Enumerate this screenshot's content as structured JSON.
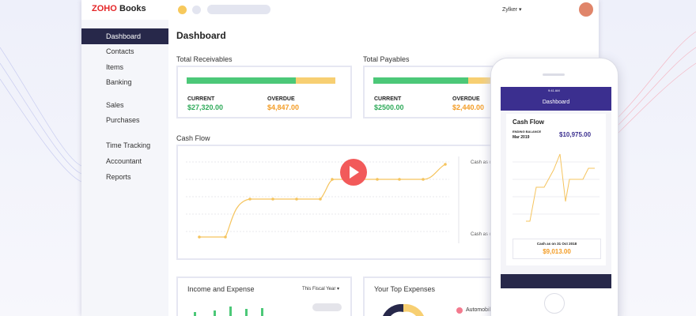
{
  "logo": {
    "brand": "ZOHO",
    "product": "Books"
  },
  "top_bar": {
    "user": "Zylker ▾"
  },
  "sidebar": {
    "items": [
      "Dashboard",
      "Contacts",
      "Items",
      "Banking",
      "Sales",
      "Purchases",
      "Time Tracking",
      "Accountant",
      "Reports"
    ]
  },
  "main": {
    "title": "Dashboard"
  },
  "receivables": {
    "title": "Total Receivables",
    "current_label": "CURRENT",
    "current_value": "$27,320.00",
    "overdue_label": "OVERDUE",
    "overdue_value": "$4,847.00"
  },
  "payables": {
    "title": "Total Payables",
    "current_label": "CURRENT",
    "current_value": "$2500.00",
    "overdue_label": "OVERDUE",
    "overdue_value": "$2,440.00"
  },
  "cash_flow": {
    "title": "Cash Flow",
    "side_labels": [
      "Cash as o",
      "Cash as o"
    ]
  },
  "income_expense": {
    "title": "Income and Expense",
    "period": "This Fiscal Year ▾"
  },
  "top_expenses": {
    "title": "Your Top Expenses",
    "legend": "Automobile"
  },
  "phone": {
    "time": "9:41 AM",
    "header": "Dashboard",
    "card_title": "Cash Flow",
    "ending_balance_label": "ENDING BALANCE",
    "ending_balance_month": "Mar 2019",
    "ending_balance_value": "$10,975.00",
    "cash_as_on": "Cash as on  31 Oct 2018",
    "cash_value": "$9,013.00"
  }
}
